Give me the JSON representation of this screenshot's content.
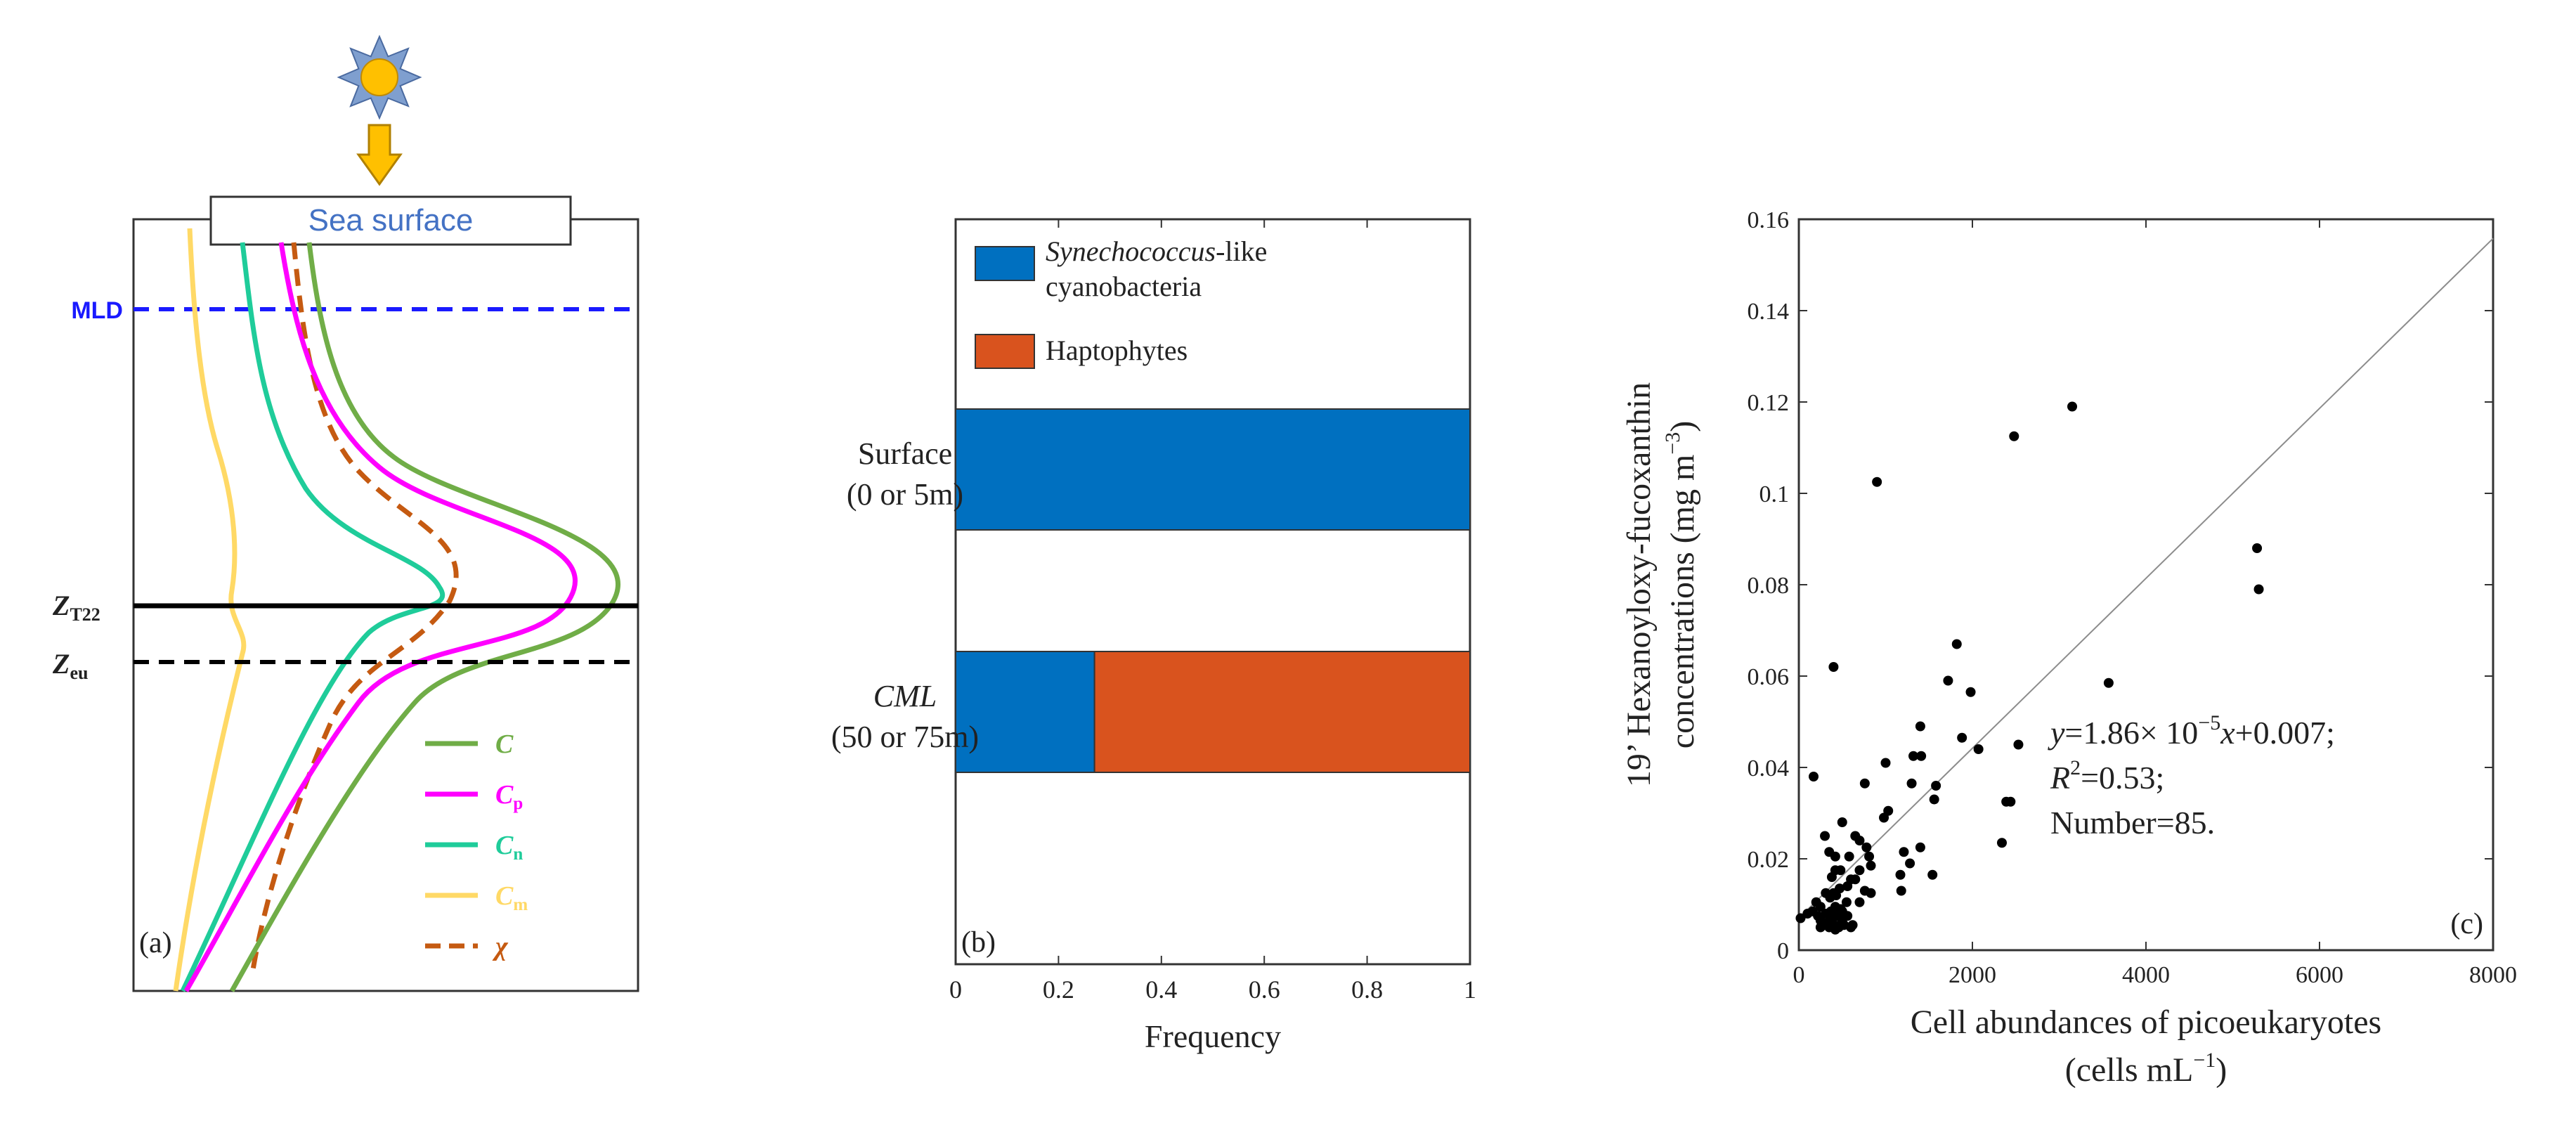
{
  "colors": {
    "C": "#70ad47",
    "Cp": "#ff00ff",
    "Cn": "#1fcc9a",
    "Cm": "#ffd966",
    "chi": "#c55a11",
    "mld": "#1a1aff",
    "sun": "#ffc000",
    "synechococcus": "#0070c0",
    "haptophytes": "#d9531e",
    "sea_surface_text": "#4472c4"
  },
  "panel_a": {
    "sea_surface": "Sea surface",
    "mld_label": "MLD",
    "zt22_main": "Z",
    "zt22_sub": "T22",
    "zeu_main": "Z",
    "zeu_sub": "eu",
    "panel_label": "(a)",
    "icons": [
      "sun-icon",
      "down-arrow-icon"
    ],
    "legend": [
      {
        "key": "C",
        "main": "C",
        "sub": "",
        "color_key": "C",
        "dashed": false
      },
      {
        "key": "Cp",
        "main": "C",
        "sub": "p",
        "color_key": "Cp",
        "dashed": false
      },
      {
        "key": "Cn",
        "main": "C",
        "sub": "n",
        "color_key": "Cn",
        "dashed": false
      },
      {
        "key": "Cm",
        "main": "C",
        "sub": "m",
        "color_key": "Cm",
        "dashed": false
      },
      {
        "key": "chi",
        "main": "χ",
        "sub": "",
        "color_key": "chi",
        "dashed": true
      }
    ]
  },
  "chart_data": [
    {
      "type": "bar",
      "panel_label": "(b)",
      "orientation": "horizontal",
      "stacked": true,
      "categories": [
        {
          "line1": "Surface",
          "line2": "(0 or 5m)",
          "italic": false
        },
        {
          "line1": "CML",
          "line2": "(50 or 75m)",
          "italic": true
        }
      ],
      "series": [
        {
          "name_italic": "Synechococcus",
          "name_rest": "-like",
          "name_line2": "cyanobacteria",
          "color_key": "synechococcus",
          "values": [
            1.0,
            0.27
          ]
        },
        {
          "name_italic": "",
          "name_rest": "Haptophytes",
          "name_line2": "",
          "color_key": "haptophytes",
          "values": [
            0.0,
            0.73
          ]
        }
      ],
      "xlabel": "Frequency",
      "xlim": [
        0,
        1
      ],
      "xticks": [
        0,
        0.2,
        0.4,
        0.6,
        0.8,
        1
      ],
      "xtick_labels": [
        "0",
        "0.2",
        "0.4",
        "0.6",
        "0.8",
        "1"
      ]
    },
    {
      "type": "scatter",
      "panel_label": "(c)",
      "xlabel_line1": "Cell abundances of picoeukaryotes",
      "xlabel_line2": "(cells mL",
      "xlabel_line2_sup": "−1",
      "xlabel_line2_end": ")",
      "ylabel_line1": "19’ Hexanoyloxy-fucoxanthin",
      "ylabel_line2": "concentrations (mg m",
      "ylabel_line2_sup": "−3",
      "ylabel_line2_end": ")",
      "xlim": [
        0,
        8000
      ],
      "ylim": [
        0,
        0.16
      ],
      "xticks": [
        0,
        2000,
        4000,
        6000,
        8000
      ],
      "xtick_labels": [
        "0",
        "2000",
        "4000",
        "6000",
        "8000"
      ],
      "yticks": [
        0,
        0.02,
        0.04,
        0.06,
        0.08,
        0.1,
        0.12,
        0.14,
        0.16
      ],
      "ytick_labels": [
        "0",
        "0.02",
        "0.04",
        "0.06",
        "0.08",
        "0.1",
        "0.12",
        "0.14",
        "0.16"
      ],
      "fit": {
        "slope": 1.86e-05,
        "intercept": 0.007
      },
      "annotation": {
        "eq_y": "y",
        "eq_a": "=1.86× 10",
        "eq_exp": "−5",
        "eq_x": "x",
        "eq_b": "+0.007;",
        "r2_r": "R",
        "r2_sup": "2",
        "r2_rest": "=0.53;",
        "number": "Number=85."
      },
      "points": [
        [
          3150,
          0.119
        ],
        [
          2480,
          0.1125
        ],
        [
          900,
          0.1025
        ],
        [
          5280,
          0.088
        ],
        [
          5300,
          0.079
        ],
        [
          400,
          0.062
        ],
        [
          1820,
          0.067
        ],
        [
          3570,
          0.0585
        ],
        [
          1720,
          0.059
        ],
        [
          1980,
          0.0565
        ],
        [
          1400,
          0.049
        ],
        [
          2530,
          0.045
        ],
        [
          1880,
          0.0465
        ],
        [
          2070,
          0.044
        ],
        [
          1320,
          0.0425
        ],
        [
          1410,
          0.0425
        ],
        [
          1000,
          0.041
        ],
        [
          170,
          0.038
        ],
        [
          1580,
          0.036
        ],
        [
          1300,
          0.0365
        ],
        [
          760,
          0.0365
        ],
        [
          2390,
          0.0325
        ],
        [
          2440,
          0.0325
        ],
        [
          1560,
          0.033
        ],
        [
          1030,
          0.0305
        ],
        [
          980,
          0.029
        ],
        [
          500,
          0.028
        ],
        [
          650,
          0.025
        ],
        [
          300,
          0.025
        ],
        [
          2340,
          0.0235
        ],
        [
          700,
          0.024
        ],
        [
          780,
          0.0225
        ],
        [
          810,
          0.0205
        ],
        [
          350,
          0.0215
        ],
        [
          420,
          0.0205
        ],
        [
          580,
          0.0205
        ],
        [
          1210,
          0.0215
        ],
        [
          1400,
          0.0225
        ],
        [
          1540,
          0.0165
        ],
        [
          1170,
          0.0165
        ],
        [
          1280,
          0.019
        ],
        [
          420,
          0.0175
        ],
        [
          480,
          0.0175
        ],
        [
          830,
          0.0185
        ],
        [
          700,
          0.0175
        ],
        [
          600,
          0.0155
        ],
        [
          650,
          0.0155
        ],
        [
          380,
          0.016
        ],
        [
          1180,
          0.013
        ],
        [
          760,
          0.013
        ],
        [
          830,
          0.0125
        ],
        [
          560,
          0.014
        ],
        [
          470,
          0.0135
        ],
        [
          400,
          0.0125
        ],
        [
          430,
          0.012
        ],
        [
          360,
          0.0115
        ],
        [
          310,
          0.0125
        ],
        [
          550,
          0.0105
        ],
        [
          700,
          0.0105
        ],
        [
          200,
          0.0105
        ],
        [
          250,
          0.0095
        ],
        [
          420,
          0.0095
        ],
        [
          480,
          0.009
        ],
        [
          370,
          0.0085
        ],
        [
          500,
          0.0085
        ],
        [
          160,
          0.0085
        ],
        [
          310,
          0.008
        ],
        [
          440,
          0.0075
        ],
        [
          560,
          0.0075
        ],
        [
          220,
          0.0075
        ],
        [
          370,
          0.0065
        ],
        [
          250,
          0.0065
        ],
        [
          500,
          0.0065
        ],
        [
          330,
          0.006
        ],
        [
          280,
          0.0055
        ],
        [
          410,
          0.0055
        ],
        [
          520,
          0.0055
        ],
        [
          460,
          0.005
        ],
        [
          350,
          0.005
        ],
        [
          250,
          0.005
        ],
        [
          620,
          0.0055
        ],
        [
          20,
          0.007
        ],
        [
          600,
          0.005
        ],
        [
          420,
          0.0045
        ],
        [
          100,
          0.008
        ]
      ]
    }
  ]
}
